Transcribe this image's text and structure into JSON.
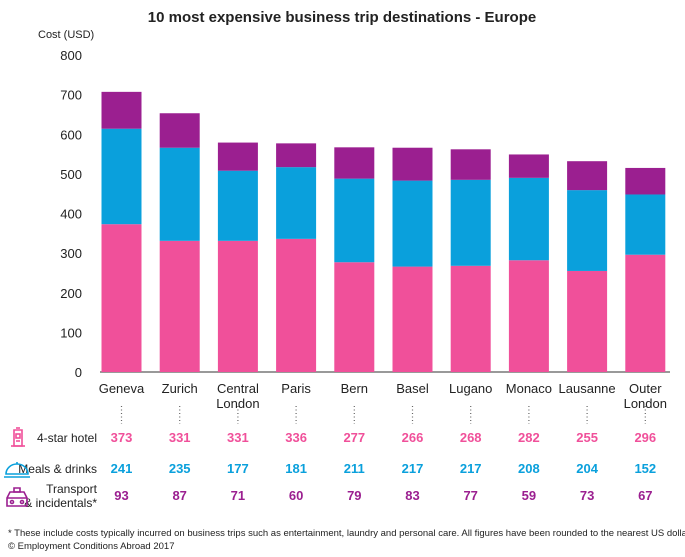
{
  "title": "10 most expensive business trip destinations - Europe",
  "y_axis_label": "Cost (USD)",
  "footnote": "* These include costs typically incurred on business trips such as entertainment, laundry and personal care. All figures have been rounded to the nearest US dollar.",
  "copyright": "© Employment Conditions Abroad 2017",
  "icons": {
    "hotel": "hotel-icon",
    "meals": "cloche-icon",
    "transport": "car-icon"
  },
  "chart_data": {
    "type": "bar",
    "stacked": true,
    "title": "10 most expensive business trip destinations - Europe",
    "ylabel": "Cost (USD)",
    "ylim": [
      0,
      800
    ],
    "yticks": [
      0,
      100,
      200,
      300,
      400,
      500,
      600,
      700,
      800
    ],
    "categories": [
      [
        "Geneva"
      ],
      [
        "Zurich"
      ],
      [
        "Central",
        "London"
      ],
      [
        "Paris"
      ],
      [
        "Bern"
      ],
      [
        "Basel"
      ],
      [
        "Lugano"
      ],
      [
        "Monaco"
      ],
      [
        "Lausanne"
      ],
      [
        "Outer",
        "London"
      ]
    ],
    "series": [
      {
        "name": "4-star hotel",
        "label": [
          "4-star hotel"
        ],
        "color": "#f0509a",
        "values": [
          373,
          331,
          331,
          336,
          277,
          266,
          268,
          282,
          255,
          296
        ]
      },
      {
        "name": "Meals & drinks",
        "label": [
          "Meals & drinks"
        ],
        "color": "#0aa0dc",
        "values": [
          241,
          235,
          177,
          181,
          211,
          217,
          217,
          208,
          204,
          152
        ]
      },
      {
        "name": "Transport & incidentals*",
        "label": [
          "Transport",
          "& incidentals*"
        ],
        "color": "#9b1f90",
        "values": [
          93,
          87,
          71,
          60,
          79,
          83,
          77,
          59,
          73,
          67
        ]
      }
    ],
    "grid": false,
    "legend": "table below chart"
  }
}
